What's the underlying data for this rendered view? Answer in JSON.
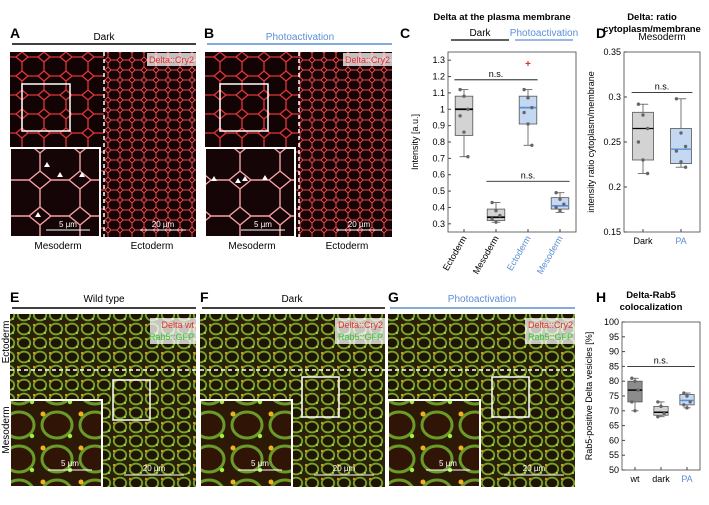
{
  "letters": [
    "A",
    "B",
    "C",
    "D",
    "E",
    "F",
    "G",
    "H"
  ],
  "panel_A": {
    "header": "Dark",
    "channel": "Delta::Cry2",
    "inset_scale": "5 µm",
    "scale": "20 µm",
    "tissue_left": "Mesoderm",
    "tissue_right": "Ectoderm"
  },
  "panel_B": {
    "header": "Photoactivation",
    "channel": "Delta::Cry2",
    "inset_scale": "5 µm",
    "scale": "20 µm",
    "tissue_left": "Mesoderm",
    "tissue_right": "Ectoderm"
  },
  "panel_E": {
    "header": "Wild type",
    "channels": [
      "Delta wt",
      "Rab5::GFP"
    ],
    "inset_scale": "5 µm",
    "scale": "20 µm",
    "tissue_top": "Ectoderm",
    "tissue_bottom": "Mesoderm"
  },
  "panel_F": {
    "header": "Dark",
    "channels": [
      "Delta::Cry2",
      "Rab5::GFP"
    ],
    "inset_scale": "5 µm",
    "scale": "20 µm"
  },
  "panel_G": {
    "header": "Photoactivation",
    "channels": [
      "Delta::Cry2",
      "Rab5::GFP"
    ],
    "inset_scale": "5 µm",
    "scale": "20 µm"
  },
  "chart_data": [
    {
      "type": "box",
      "title_lines": [
        "Delta at the plasma membrane"
      ],
      "group_headers": [
        "Dark",
        "Photoactivation"
      ],
      "group_colors": [
        "#000000",
        "#5b8fd4"
      ],
      "ylabel": "Intensity [a.u.]",
      "categories": [
        "Ectoderm",
        "Mesoderm",
        "Ectoderm",
        "Mesoderm"
      ],
      "category_colors": [
        "#000000",
        "#000000",
        "#5b8fd4",
        "#5b8fd4"
      ],
      "ylim": [
        0.25,
        1.35
      ],
      "yticks": [
        0.3,
        0.4,
        0.5,
        0.6,
        0.7,
        0.8,
        0.9,
        1,
        1.1,
        1.2,
        1.3
      ],
      "annotations": [
        "n.s.",
        "n.s."
      ],
      "boxes": [
        {
          "color": "#d3d3d3",
          "min": 0.71,
          "q1": 0.84,
          "median": 1.0,
          "q3": 1.08,
          "max": 1.12,
          "points": [
            1.12,
            1.08,
            1.0,
            0.96,
            0.86,
            0.71
          ]
        },
        {
          "color": "#d3d3d3",
          "min": 0.31,
          "q1": 0.32,
          "median": 0.34,
          "q3": 0.39,
          "max": 0.43,
          "points": [
            0.43,
            0.38,
            0.35,
            0.33,
            0.31
          ]
        },
        {
          "color": "#c4d8f2",
          "min": 0.78,
          "q1": 0.91,
          "median": 1.01,
          "q3": 1.08,
          "max": 1.12,
          "points": [
            1.12,
            1.07,
            1.01,
            0.98,
            0.91,
            0.78
          ],
          "outliers": [
            1.28
          ]
        },
        {
          "color": "#c4d8f2",
          "min": 0.37,
          "q1": 0.39,
          "median": 0.41,
          "q3": 0.46,
          "max": 0.49,
          "points": [
            0.49,
            0.45,
            0.42,
            0.4,
            0.38
          ]
        }
      ]
    },
    {
      "type": "box",
      "title_lines": [
        "Delta: ratio",
        "cytoplasm/membrane"
      ],
      "subtitle": "Mesoderm",
      "ylabel": "intensity ratio cytoplasm/membrane",
      "categories": [
        "Dark",
        "PA"
      ],
      "category_colors": [
        "#000000",
        "#5b8fd4"
      ],
      "ylim": [
        0.15,
        0.35
      ],
      "yticks": [
        0.15,
        0.2,
        0.25,
        0.3,
        0.35
      ],
      "annotations": [
        "n.s."
      ],
      "boxes": [
        {
          "color": "#d3d3d3",
          "min": 0.215,
          "q1": 0.23,
          "median": 0.265,
          "q3": 0.283,
          "max": 0.292,
          "points": [
            0.292,
            0.28,
            0.265,
            0.25,
            0.23,
            0.215
          ]
        },
        {
          "color": "#c4d8f2",
          "min": 0.222,
          "q1": 0.226,
          "median": 0.242,
          "q3": 0.265,
          "max": 0.298,
          "points": [
            0.298,
            0.26,
            0.245,
            0.24,
            0.228,
            0.222
          ]
        }
      ]
    },
    {
      "type": "box",
      "title_lines": [
        "Delta-Rab5",
        "colocalization"
      ],
      "ylabel": "Rab5-positive Delta vesicles [%]",
      "categories": [
        "wt",
        "dark",
        "PA"
      ],
      "category_colors": [
        "#000000",
        "#000000",
        "#5b8fd4"
      ],
      "ylim": [
        50,
        100
      ],
      "yticks": [
        50,
        55,
        60,
        65,
        70,
        75,
        80,
        85,
        90,
        95,
        100
      ],
      "annotations": [
        "n.s."
      ],
      "boxes": [
        {
          "color": "#8c8c8c",
          "min": 70,
          "q1": 73,
          "median": 77,
          "q3": 80,
          "max": 81,
          "points": [
            81,
            80,
            77,
            73,
            70
          ]
        },
        {
          "color": "#d3d3d3",
          "min": 68,
          "q1": 68.5,
          "median": 69.5,
          "q3": 71.5,
          "max": 73,
          "points": [
            73,
            71.5,
            69,
            68
          ]
        },
        {
          "color": "#c4d8f2",
          "min": 71,
          "q1": 72,
          "median": 73.5,
          "q3": 75.5,
          "max": 76,
          "points": [
            76,
            75,
            73,
            72,
            71
          ]
        }
      ]
    }
  ]
}
